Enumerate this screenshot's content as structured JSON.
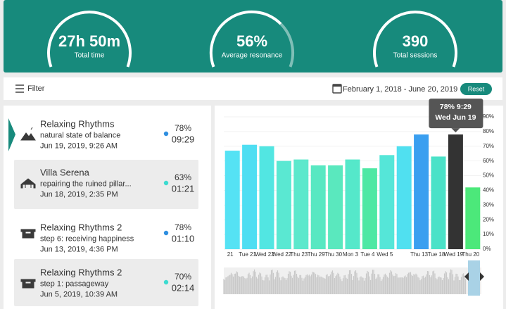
{
  "gauges": [
    {
      "value": "27h 50m",
      "label": "Total time"
    },
    {
      "value": "56%",
      "label": "Average resonance"
    },
    {
      "value": "390",
      "label": "Total sessions"
    }
  ],
  "toolbar": {
    "filter": "Filter",
    "date_range": "February 1, 2018 - June 20, 2019",
    "reset": "Reset"
  },
  "sessions": [
    {
      "title": "Relaxing Rhythms",
      "subtitle": "natural state of balance",
      "date": "Jun 19, 2019, 9:26 AM",
      "resonance": "78%",
      "duration": "09:29",
      "dot_color": "#2f8fe0"
    },
    {
      "title": "Villa Serena",
      "subtitle": "repairing the ruined pillar...",
      "date": "Jun 18, 2019, 2:35 PM",
      "resonance": "63%",
      "duration": "01:21",
      "dot_color": "#3ddbd0"
    },
    {
      "title": "Relaxing Rhythms 2",
      "subtitle": "step 6: receiving happiness",
      "date": "Jun 13, 2019, 4:36 PM",
      "resonance": "78%",
      "duration": "01:10",
      "dot_color": "#2f8fe0"
    },
    {
      "title": "Relaxing Rhythms 2",
      "subtitle": "step 1: passageway",
      "date": "Jun 5, 2019, 10:39 AM",
      "resonance": "70%",
      "duration": "02:14",
      "dot_color": "#3ddbd0"
    }
  ],
  "chart_data": {
    "type": "bar",
    "categories": [
      "21",
      "Tue 21",
      "Wed 22",
      "Wed 22",
      "Thu 23",
      "Thu 29",
      "Thu 30",
      "Mon 3",
      "Tue 4",
      "Wed 5",
      null,
      "Thu 13",
      "Tue 18",
      "Wed 19",
      "Thu 20"
    ],
    "values": [
      67,
      71,
      70,
      60,
      61,
      57,
      57,
      61,
      55,
      64,
      70,
      78,
      63,
      78,
      42
    ],
    "colors": [
      "#55e2f4",
      "#4fdef2",
      "#52e6e2",
      "#5ae8d2",
      "#5ce8cc",
      "#58e8c2",
      "#5ae8be",
      "#55e8ca",
      "#4ee8a4",
      "#55e6d8",
      "#50e0f0",
      "#3a9ff0",
      "#4ae2c8",
      "#333333",
      "#4ce87a"
    ],
    "ylim": [
      0,
      90
    ],
    "yticks": [
      {
        "value": 0,
        "label": "0%"
      },
      {
        "value": 10,
        "label": "10%"
      },
      {
        "value": 20,
        "label": "20%"
      },
      {
        "value": 30,
        "label": "30%"
      },
      {
        "value": 40,
        "label": "40%"
      },
      {
        "value": 50,
        "label": "50%"
      },
      {
        "value": 60,
        "label": "60%"
      },
      {
        "value": 70,
        "label": "70%"
      },
      {
        "value": 80,
        "label": "80%"
      },
      {
        "value": 90,
        "label": "90%"
      }
    ],
    "grid": true,
    "tooltip": {
      "lines": [
        "78% 9:29",
        "Wed Jun 19"
      ]
    }
  }
}
